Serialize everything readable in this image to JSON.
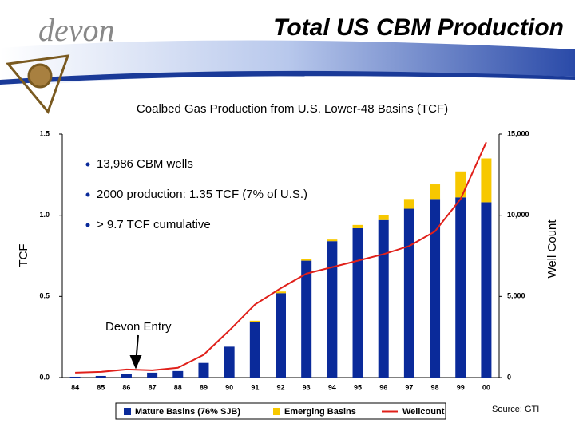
{
  "header": {
    "logo": "devon"
  },
  "chart_data": {
    "type": "bar",
    "title": "Total US CBM Production",
    "subtitle": "Coalbed Gas Production from U.S. Lower-48 Basins (TCF)",
    "ylabel": "TCF",
    "y2label": "Well Count",
    "bullets": [
      "13,986 CBM wells",
      "2000 production: 1.35 TCF (7% of  U.S.)",
      "> 9.7 TCF cumulative"
    ],
    "annotation": "Devon Entry",
    "stacked": true,
    "categories": [
      "84",
      "85",
      "86",
      "87",
      "88",
      "89",
      "90",
      "91",
      "92",
      "93",
      "94",
      "95",
      "96",
      "97",
      "98",
      "99",
      "00"
    ],
    "series": [
      {
        "name": "Mature Basins (76% SJB)",
        "color": "#0a2a9a",
        "values": [
          0.005,
          0.01,
          0.02,
          0.03,
          0.04,
          0.09,
          0.19,
          0.34,
          0.52,
          0.72,
          0.84,
          0.92,
          0.97,
          1.04,
          1.1,
          1.11,
          1.08
        ]
      },
      {
        "name": "Emerging Basins",
        "color": "#f7c800",
        "values": [
          0,
          0,
          0,
          0,
          0,
          0,
          0,
          0.01,
          0.01,
          0.01,
          0.01,
          0.02,
          0.03,
          0.06,
          0.09,
          0.16,
          0.27
        ]
      },
      {
        "name": "Wellcount",
        "color": "#e0201a",
        "type": "line",
        "axis": "y2",
        "values": [
          300,
          350,
          500,
          450,
          600,
          1400,
          2900,
          4500,
          5500,
          6400,
          6800,
          7200,
          7600,
          8100,
          9000,
          11000,
          14500
        ]
      }
    ],
    "ylim": [
      0,
      1.5
    ],
    "yticks": [
      {
        "value": 0,
        "label": "0.0"
      },
      0.5,
      {
        "value": 1,
        "label": "1.0"
      },
      1.5
    ],
    "y2lim": [
      0,
      15000
    ],
    "y2ticks": [
      0,
      {
        "value": 5000,
        "label": "5,000"
      },
      {
        "value": 10000,
        "label": "10,000"
      },
      {
        "value": 15000,
        "label": "15,000"
      }
    ],
    "legend": "bottom"
  },
  "source": "Source: GTI"
}
